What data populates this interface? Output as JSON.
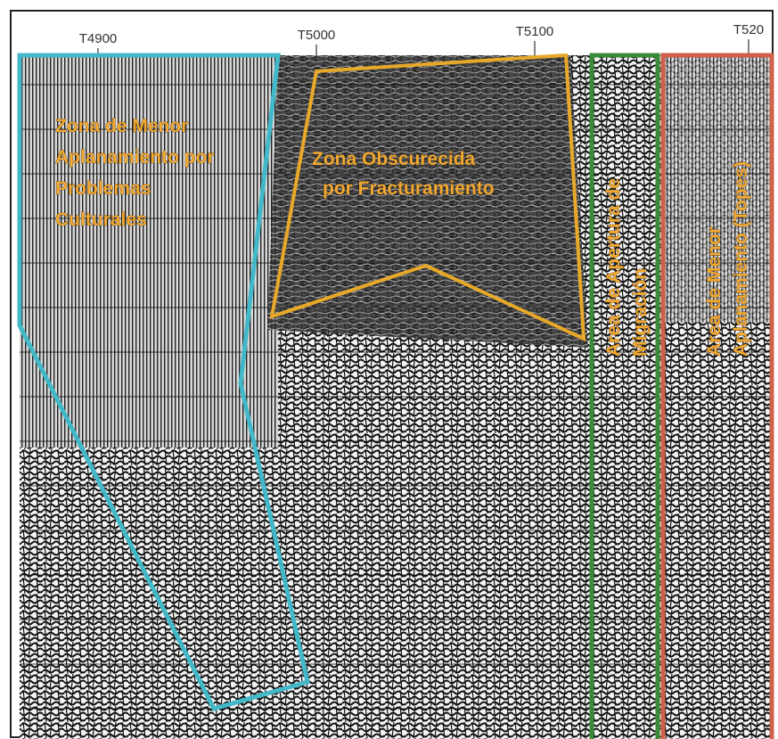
{
  "header": {
    "trace_labels": [
      "T4900",
      "T5000",
      "T5100",
      "T520"
    ]
  },
  "annotations": [
    {
      "lines": [
        "Zona de Menor",
        "Aplanamiento por",
        "Problemas",
        "Culturales"
      ]
    },
    {
      "lines": [
        "Zona Obscurecida",
        "por Fracturamiento"
      ]
    },
    {
      "lines": [
        "Area de Apertura de",
        "Migración"
      ]
    },
    {
      "lines": [
        "Area de Menor",
        "Aplanamiento (Topes)"
      ]
    }
  ]
}
